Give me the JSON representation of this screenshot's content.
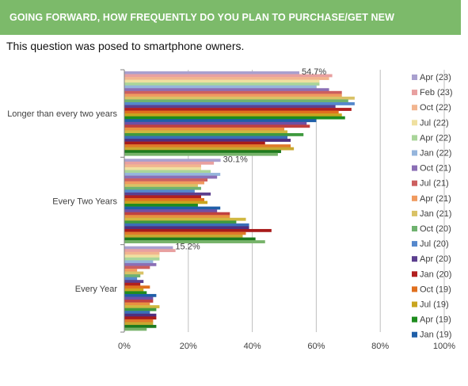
{
  "header": {
    "title": "GOING FORWARD, HOW FREQUENTLY DO YOU PLAN TO PURCHASE/GET NEW SMARTPHONES?"
  },
  "subtitle": "This question was posed to smartphone owners.",
  "chart_data": {
    "type": "bar",
    "orientation": "horizontal",
    "title": "",
    "xlabel": "",
    "ylabel": "",
    "xlim": [
      0,
      100
    ],
    "x_ticks": [
      "0%",
      "20%",
      "40%",
      "60%",
      "80%",
      "100%"
    ],
    "grid": true,
    "legend_position": "right",
    "categories": [
      "Longer than every two years",
      "Every Two Years",
      "Every Year"
    ],
    "series": [
      {
        "name": "Apr (23)",
        "color": "#a9a0cf",
        "values": [
          54.7,
          30.1,
          15.2
        ]
      },
      {
        "name": "Feb (23)",
        "color": "#e8a0a0",
        "values": [
          65,
          28,
          16
        ]
      },
      {
        "name": "Oct (22)",
        "color": "#f2b58f",
        "values": [
          64,
          24,
          11
        ]
      },
      {
        "name": "Jul (22)",
        "color": "#efe0a0",
        "values": [
          61,
          24,
          11
        ]
      },
      {
        "name": "Apr (22)",
        "color": "#a9d59a",
        "values": [
          61,
          27,
          11
        ]
      },
      {
        "name": "Jan (22)",
        "color": "#95b5dc",
        "values": [
          60,
          30,
          9
        ]
      },
      {
        "name": "Oct (21)",
        "color": "#8b6fb5",
        "values": [
          64,
          29,
          10
        ]
      },
      {
        "name": "Jul (21)",
        "color": "#cc5f5f",
        "values": [
          68,
          26,
          8
        ]
      },
      {
        "name": "Apr (21)",
        "color": "#f09a5f",
        "values": [
          68,
          25,
          4
        ]
      },
      {
        "name": "Jan (21)",
        "color": "#d9c266",
        "values": [
          72,
          23,
          6
        ]
      },
      {
        "name": "Oct (20)",
        "color": "#6fb26f",
        "values": [
          70,
          24,
          5
        ]
      },
      {
        "name": "Jul (20)",
        "color": "#5588cc",
        "values": [
          72,
          22,
          4
        ]
      },
      {
        "name": "Apr (20)",
        "color": "#5c3f8f",
        "values": [
          66,
          27,
          6
        ]
      },
      {
        "name": "Jan (20)",
        "color": "#b21f1f",
        "values": [
          71,
          24,
          5
        ]
      },
      {
        "name": "Oct (19)",
        "color": "#e0701f",
        "values": [
          67,
          25,
          8
        ]
      },
      {
        "name": "Jul (19)",
        "color": "#c9a51f",
        "values": [
          68,
          26,
          6
        ]
      },
      {
        "name": "Apr (19)",
        "color": "#1e8c1e",
        "values": [
          69,
          23,
          7
        ]
      },
      {
        "name": "Jan (19)",
        "color": "#1f5fa8",
        "values": [
          60,
          30,
          10
        ]
      },
      {
        "name": "",
        "color": "#6f4fa5",
        "values": [
          57,
          29,
          9
        ]
      },
      {
        "name": "",
        "color": "#c04040",
        "values": [
          58,
          33,
          9
        ]
      },
      {
        "name": "",
        "color": "#e89040",
        "values": [
          50,
          33,
          8
        ]
      },
      {
        "name": "",
        "color": "#d0b840",
        "values": [
          51,
          38,
          11
        ]
      },
      {
        "name": "",
        "color": "#3f9a3f",
        "values": [
          56,
          35,
          10
        ]
      },
      {
        "name": "",
        "color": "#3a6fb8",
        "values": [
          51,
          39,
          8
        ]
      },
      {
        "name": "",
        "color": "#4f2f80",
        "values": [
          52,
          39,
          10
        ]
      },
      {
        "name": "",
        "color": "#a81a1a",
        "values": [
          44,
          46,
          10
        ]
      },
      {
        "name": "",
        "color": "#e07a2a",
        "values": [
          52,
          38,
          9
        ]
      },
      {
        "name": "",
        "color": "#c8a830",
        "values": [
          53,
          37,
          9
        ]
      },
      {
        "name": "",
        "color": "#1e7a1e",
        "values": [
          49,
          41,
          10
        ]
      },
      {
        "name": "",
        "color": "#77b36a",
        "values": [
          48,
          44,
          7
        ]
      }
    ],
    "data_labels": [
      "54.7%",
      "30.1%",
      "15.2%"
    ]
  }
}
